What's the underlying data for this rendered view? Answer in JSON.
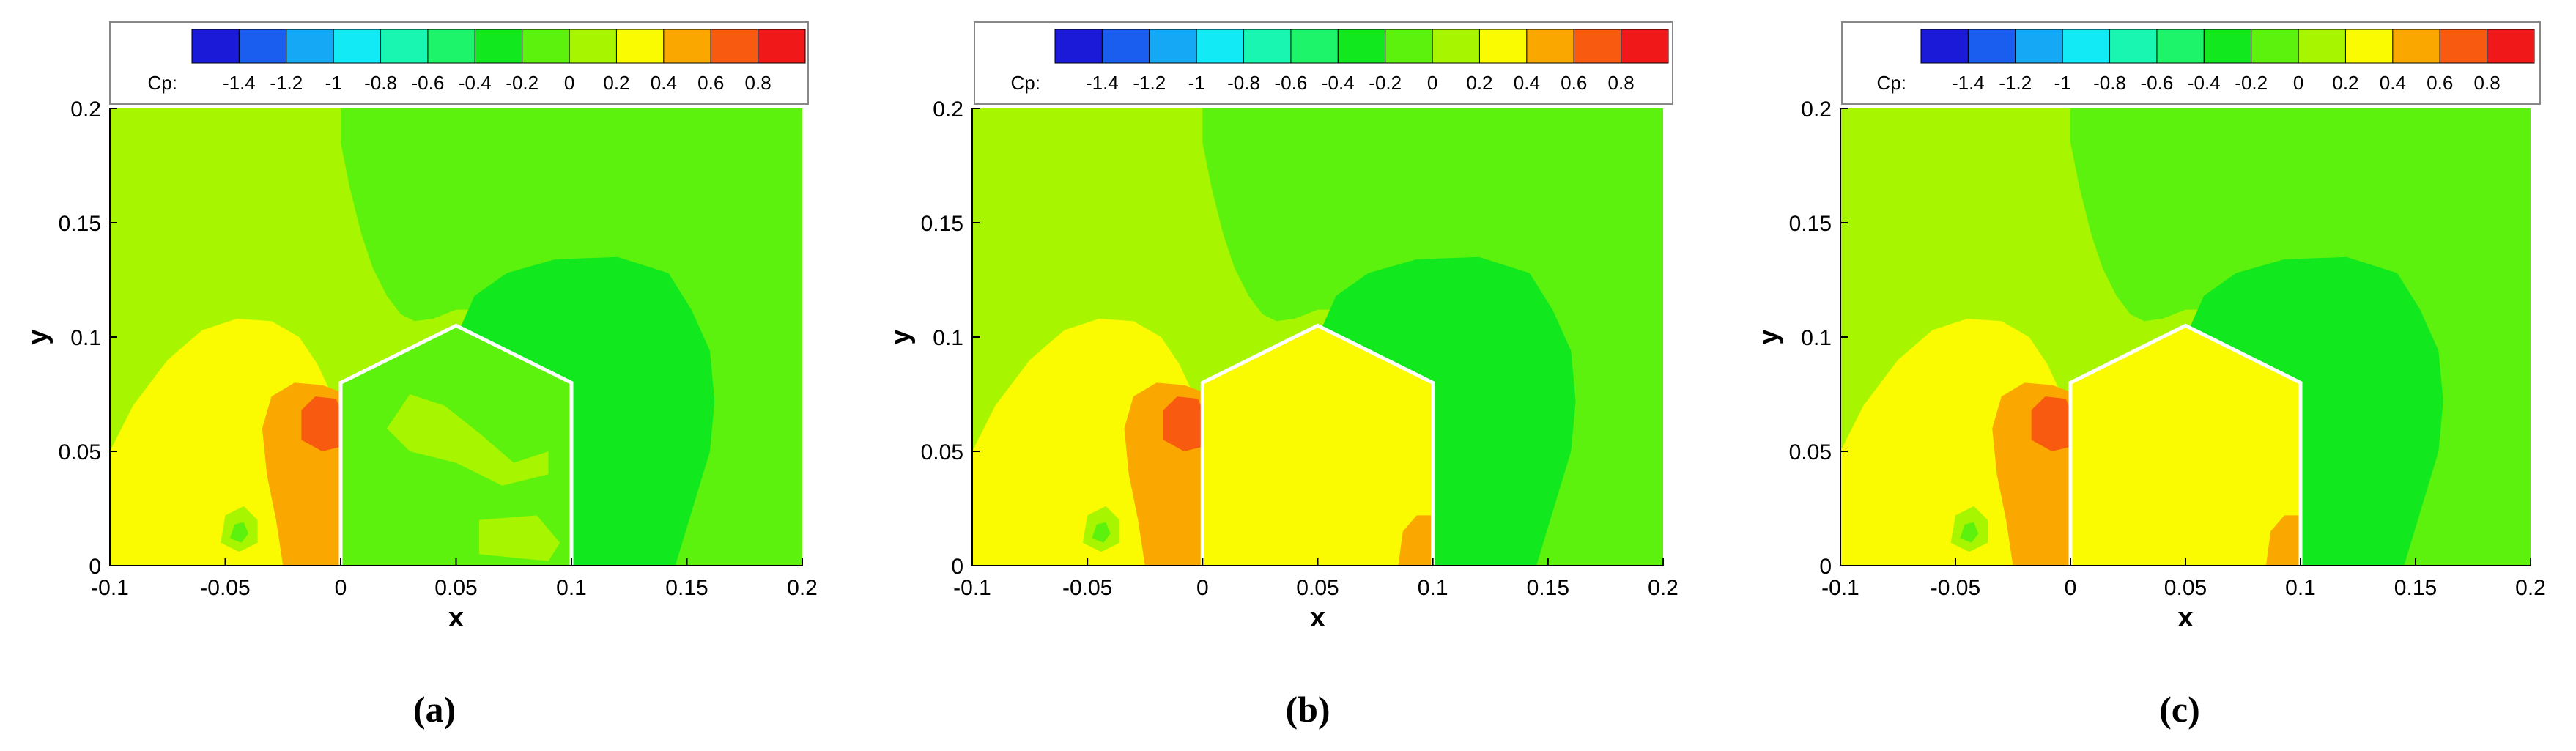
{
  "colorbar": {
    "label": "Cp:",
    "tick_labels": [
      "-1.4",
      "-1.2",
      "-1",
      "-0.8",
      "-0.6",
      "-0.4",
      "-0.2",
      "0",
      "0.2",
      "0.4",
      "0.6",
      "0.8"
    ],
    "colors": [
      "#1a1ad8",
      "#1a5ef0",
      "#15a8f5",
      "#12eaf5",
      "#18f6b2",
      "#1ef46a",
      "#12e81e",
      "#5cf20e",
      "#a8f500",
      "#fafa00",
      "#faa800",
      "#f85a10",
      "#f01818"
    ]
  },
  "panel_labels": [
    "(a)",
    "(b)",
    "(c)"
  ],
  "chart_data": [
    {
      "type": "heatmap",
      "panel": "(a)",
      "xlabel": "x",
      "ylabel": "y",
      "xlim": [
        -0.1,
        0.2
      ],
      "ylim": [
        0,
        0.2
      ],
      "xticks": [
        "-0.1",
        "-0.05",
        "0",
        "0.05",
        "0.1",
        "0.15",
        "0.2"
      ],
      "yticks": [
        "0",
        "0.05",
        "0.1",
        "0.15",
        "0.2"
      ],
      "colorbar_label": "Cp",
      "colorbar_range": [
        -1.4,
        0.8
      ],
      "building_outline": [
        [
          0,
          0
        ],
        [
          0,
          0.08
        ],
        [
          0.05,
          0.105
        ],
        [
          0.1,
          0.08
        ],
        [
          0.1,
          0
        ]
      ],
      "building_interior_cp_level": 0.0
    },
    {
      "type": "heatmap",
      "panel": "(b)",
      "xlabel": "x",
      "ylabel": "y",
      "xlim": [
        -0.1,
        0.2
      ],
      "ylim": [
        0,
        0.2
      ],
      "xticks": [
        "-0.1",
        "-0.05",
        "0",
        "0.05",
        "0.1",
        "0.15",
        "0.2"
      ],
      "yticks": [
        "0",
        "0.05",
        "0.1",
        "0.15",
        "0.2"
      ],
      "colorbar_label": "Cp",
      "colorbar_range": [
        -1.4,
        0.8
      ],
      "building_outline": [
        [
          0,
          0
        ],
        [
          0,
          0.08
        ],
        [
          0.05,
          0.105
        ],
        [
          0.1,
          0.08
        ],
        [
          0.1,
          0
        ]
      ],
      "building_interior_cp_level": 0.3
    },
    {
      "type": "heatmap",
      "panel": "(c)",
      "xlabel": "x",
      "ylabel": "y",
      "xlim": [
        -0.1,
        0.2
      ],
      "ylim": [
        0,
        0.2
      ],
      "xticks": [
        "-0.1",
        "-0.05",
        "0",
        "0.05",
        "0.1",
        "0.15",
        "0.2"
      ],
      "yticks": [
        "0",
        "0.05",
        "0.1",
        "0.15",
        "0.2"
      ],
      "colorbar_label": "Cp",
      "colorbar_range": [
        -1.4,
        0.8
      ],
      "building_outline": [
        [
          0,
          0
        ],
        [
          0,
          0.08
        ],
        [
          0.05,
          0.105
        ],
        [
          0.1,
          0.08
        ],
        [
          0.1,
          0
        ]
      ],
      "building_interior_cp_level": 0.3
    }
  ]
}
